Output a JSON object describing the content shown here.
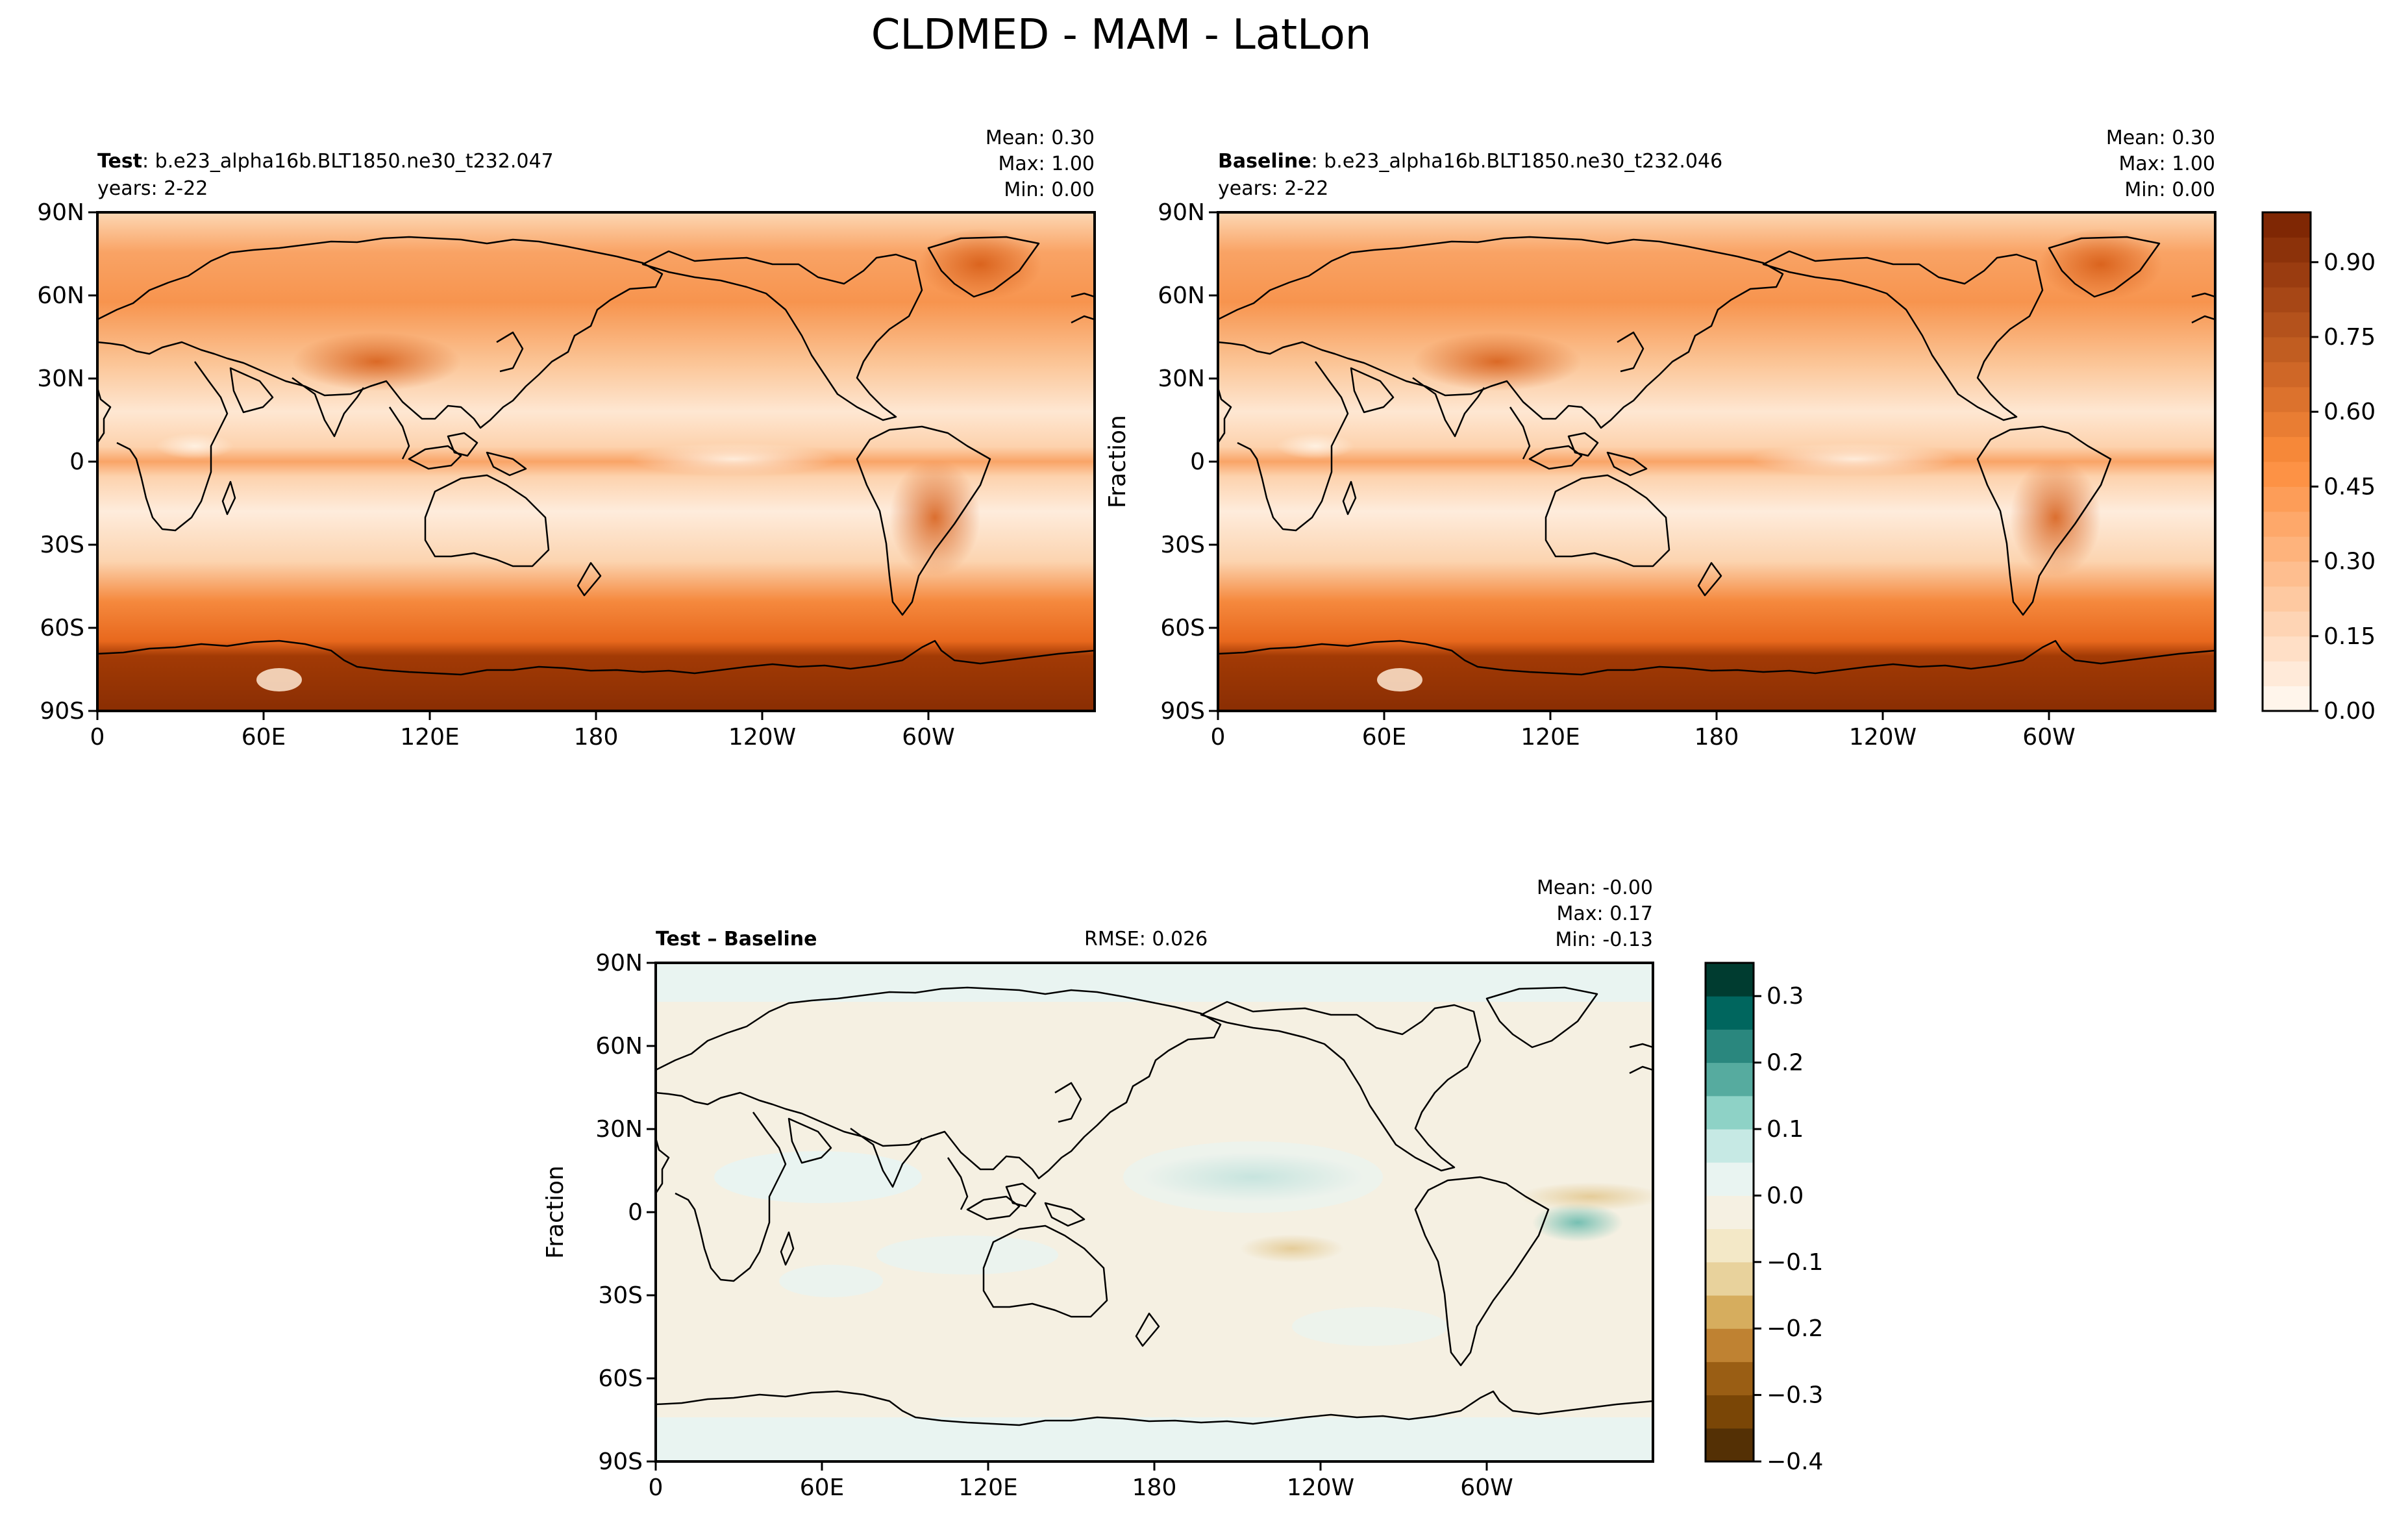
{
  "title": "CLDMED - MAM - LatLon",
  "chart_data": [
    {
      "type": "heatmap",
      "panel": "test",
      "label_bold": "Test",
      "label_text": ": b.e23_alpha16b.BLT1850.ne30_t232.047",
      "years": "years: 2-22",
      "stats": [
        "Mean:  0.30",
        "Max:  1.00",
        "Min:  0.00"
      ],
      "xlabel": "",
      "ylabel": "",
      "xticks": [
        "0",
        "60E",
        "120E",
        "180",
        "120W",
        "60W"
      ],
      "yticks": [
        "90N",
        "60N",
        "30N",
        "0",
        "30S",
        "60S",
        "90S"
      ],
      "zlim": [
        0.0,
        1.0
      ],
      "mean": 0.3,
      "max": 1.0,
      "min": 0.0
    },
    {
      "type": "heatmap",
      "panel": "baseline",
      "label_bold": "Baseline",
      "label_text": ": b.e23_alpha16b.BLT1850.ne30_t232.046",
      "years": "years: 2-22",
      "stats": [
        "Mean:  0.30",
        "Max:  1.00",
        "Min:  0.00"
      ],
      "xlabel": "",
      "ylabel": "Fraction",
      "xticks": [
        "0",
        "60E",
        "120E",
        "180",
        "120W",
        "60W"
      ],
      "yticks": [
        "90N",
        "60N",
        "30N",
        "0",
        "30S",
        "60S",
        "90S"
      ],
      "zlim": [
        0.0,
        1.0
      ],
      "mean": 0.3,
      "max": 1.0,
      "min": 0.0,
      "colorbar": {
        "ticks": [
          "0.00",
          "0.15",
          "0.30",
          "0.45",
          "0.60",
          "0.75",
          "0.90"
        ],
        "tick_values": [
          0.0,
          0.15,
          0.3,
          0.45,
          0.6,
          0.75,
          0.9
        ],
        "range": [
          0.0,
          1.0
        ],
        "levels": 20,
        "colormap": "Oranges",
        "color_low": "#fff5eb",
        "color_high": "#7f2704"
      }
    },
    {
      "type": "heatmap",
      "panel": "difference",
      "label_bold": "Test – Baseline",
      "rmse": "RMSE: 0.026",
      "stats": [
        "Mean: -0.00",
        "Max:  0.17",
        "Min: -0.13"
      ],
      "xlabel": "",
      "ylabel": "Fraction",
      "xticks": [
        "0",
        "60E",
        "120E",
        "180",
        "120W",
        "60W"
      ],
      "yticks": [
        "90N",
        "60N",
        "30N",
        "0",
        "30S",
        "60S",
        "90S"
      ],
      "zlim": [
        -0.4,
        0.35
      ],
      "mean": -0.0,
      "max": 0.17,
      "min": -0.13,
      "colorbar": {
        "ticks": [
          "0.3",
          "0.2",
          "0.1",
          "0.0",
          "−0.1",
          "−0.2",
          "−0.3",
          "−0.4"
        ],
        "tick_values": [
          0.3,
          0.2,
          0.1,
          0.0,
          -0.1,
          -0.2,
          -0.3,
          -0.4
        ],
        "range": [
          -0.4,
          0.35
        ],
        "colors": [
          "#543005",
          "#7a4606",
          "#9a5e14",
          "#bf8232",
          "#d6ad5e",
          "#e8d29c",
          "#f3e8c7",
          "#f5f0e2",
          "#e9f4f1",
          "#c6e9e4",
          "#8ed2c6",
          "#56ab9f",
          "#2a877e",
          "#00665e",
          "#003c30"
        ]
      }
    }
  ]
}
